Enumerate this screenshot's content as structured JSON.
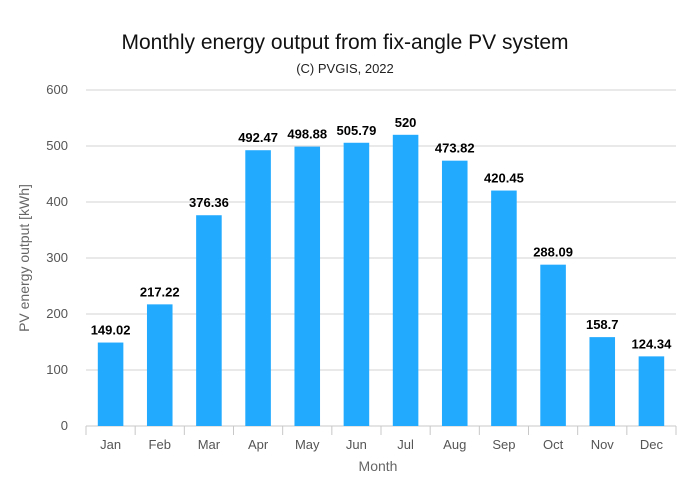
{
  "colors": {
    "bar": "#22aaff",
    "grid": "#d3d3d3",
    "axis": "#c8c8c8"
  },
  "chart_data": {
    "type": "bar",
    "title": "Monthly energy output from fix-angle PV system",
    "subtitle": "(C) PVGIS, 2022",
    "xlabel": "Month",
    "ylabel": "PV energy output [kWh]",
    "ylim": [
      0,
      600
    ],
    "yticks": [
      "0",
      "100",
      "200",
      "300",
      "400",
      "500",
      "600"
    ],
    "grid": true,
    "categories": [
      "Jan",
      "Feb",
      "Mar",
      "Apr",
      "May",
      "Jun",
      "Jul",
      "Aug",
      "Sep",
      "Oct",
      "Nov",
      "Dec"
    ],
    "values": [
      149.02,
      217.22,
      376.36,
      492.47,
      498.88,
      505.79,
      520,
      473.82,
      420.45,
      288.09,
      158.7,
      124.34
    ],
    "value_labels": [
      "149.02",
      "217.22",
      "376.36",
      "492.47",
      "498.88",
      "505.79",
      "520",
      "473.82",
      "420.45",
      "288.09",
      "158.7",
      "124.34"
    ]
  }
}
